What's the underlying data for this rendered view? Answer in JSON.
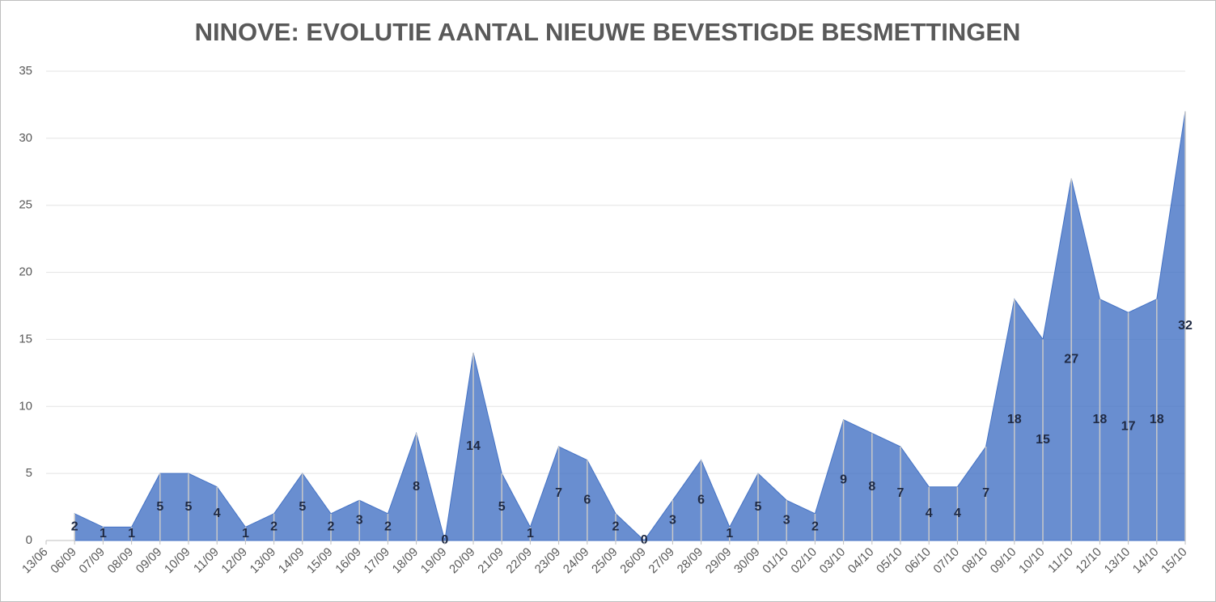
{
  "chart_data": {
    "type": "area",
    "title": "NINOVE: EVOLUTIE AANTAL NIEUWE BEVESTIGDE BESMETTINGEN",
    "categories": [
      "13/06",
      "06/09",
      "07/09",
      "08/09",
      "09/09",
      "10/09",
      "11/09",
      "12/09",
      "13/09",
      "14/09",
      "15/09",
      "16/09",
      "17/09",
      "18/09",
      "19/09",
      "20/09",
      "21/09",
      "22/09",
      "23/09",
      "24/09",
      "25/09",
      "26/09",
      "27/09",
      "28/09",
      "29/09",
      "30/09",
      "01/10",
      "02/10",
      "03/10",
      "04/10",
      "05/10",
      "06/10",
      "07/10",
      "08/10",
      "09/10",
      "10/10",
      "11/10",
      "12/10",
      "13/10",
      "14/10",
      "15/10"
    ],
    "values": [
      null,
      2,
      1,
      1,
      5,
      5,
      4,
      1,
      2,
      5,
      2,
      3,
      2,
      8,
      0,
      14,
      5,
      1,
      7,
      6,
      2,
      0,
      3,
      6,
      1,
      5,
      3,
      2,
      9,
      8,
      7,
      4,
      4,
      7,
      18,
      15,
      27,
      18,
      17,
      18,
      32
    ],
    "color": "#4472c4",
    "ylim": [
      0,
      35
    ],
    "yticks": [
      0,
      5,
      10,
      15,
      20,
      25,
      30,
      35
    ],
    "grid": true
  }
}
